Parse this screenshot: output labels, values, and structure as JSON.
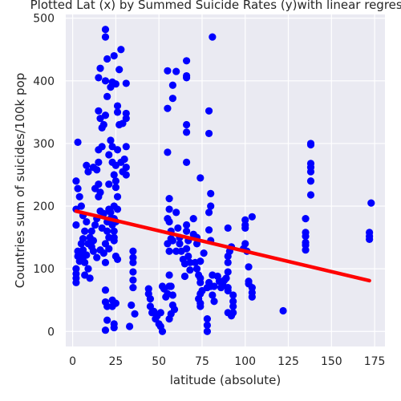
{
  "chart_data": {
    "type": "scatter",
    "title": "Plotted Lat (x) by Summed Suicide Rates (y)with linear regression",
    "xlabel": "latitude (absolute)",
    "ylabel": "Countries sum of suicides/100k pop",
    "xlim": [
      -4,
      181
    ],
    "ylim": [
      -24,
      506
    ],
    "xticks": [
      0,
      25,
      50,
      75,
      100,
      125,
      150,
      175
    ],
    "yticks": [
      0,
      100,
      200,
      300,
      400,
      500
    ],
    "grid": true,
    "marker_color": "#0000ff",
    "line_color": "#ff0000",
    "background": "#eaeaf2",
    "series": [
      {
        "type": "scatter",
        "points": [
          [
            3,
            302
          ],
          [
            2,
            240
          ],
          [
            3,
            228
          ],
          [
            4,
            215
          ],
          [
            2,
            195
          ],
          [
            2,
            170
          ],
          [
            3,
            128
          ],
          [
            3,
            120
          ],
          [
            2,
            100
          ],
          [
            2,
            92
          ],
          [
            2,
            85
          ],
          [
            2,
            78
          ],
          [
            4,
            112
          ],
          [
            5,
            125
          ],
          [
            6,
            118
          ],
          [
            7,
            110
          ],
          [
            8,
            122
          ],
          [
            6,
            130
          ],
          [
            5,
            140
          ],
          [
            6,
            148
          ],
          [
            7,
            160
          ],
          [
            8,
            175
          ],
          [
            6,
            185
          ],
          [
            5,
            200
          ],
          [
            7,
            90
          ],
          [
            9,
            100
          ],
          [
            10,
            85
          ],
          [
            9,
            140
          ],
          [
            10,
            150
          ],
          [
            11,
            135
          ],
          [
            11,
            160
          ],
          [
            12,
            145
          ],
          [
            13,
            170
          ],
          [
            14,
            180
          ],
          [
            12,
            128
          ],
          [
            14,
            118
          ],
          [
            8,
            265
          ],
          [
            9,
            255
          ],
          [
            12,
            262
          ],
          [
            14,
            258
          ],
          [
            15,
            270
          ],
          [
            13,
            228
          ],
          [
            15,
            235
          ],
          [
            15,
            215
          ],
          [
            16,
            222
          ],
          [
            15,
            290
          ],
          [
            17,
            295
          ],
          [
            16,
            340
          ],
          [
            17,
            325
          ],
          [
            18,
            330
          ],
          [
            15,
            352
          ],
          [
            19,
            345
          ],
          [
            15,
            405
          ],
          [
            16,
            420
          ],
          [
            20,
            435
          ],
          [
            19,
            400
          ],
          [
            20,
            375
          ],
          [
            22,
            390
          ],
          [
            19,
            110
          ],
          [
            18,
            125
          ],
          [
            16,
            130
          ],
          [
            19,
            140
          ],
          [
            21,
            150
          ],
          [
            20,
            160
          ],
          [
            17,
            165
          ],
          [
            20,
            175
          ],
          [
            22,
            180
          ],
          [
            18,
            188
          ],
          [
            16,
            192
          ],
          [
            21,
            195
          ],
          [
            23,
            170
          ],
          [
            19,
            66
          ],
          [
            19,
            47
          ],
          [
            20,
            40
          ],
          [
            23,
            40
          ],
          [
            20,
            18
          ],
          [
            19,
            2
          ],
          [
            24,
            12
          ],
          [
            24,
            6
          ],
          [
            23,
            50
          ],
          [
            25,
            45
          ],
          [
            19,
            470
          ],
          [
            19,
            482
          ],
          [
            24,
            440
          ],
          [
            28,
            450
          ],
          [
            27,
            418
          ],
          [
            23,
            398
          ],
          [
            25,
            395
          ],
          [
            31,
            396
          ],
          [
            26,
            360
          ],
          [
            26,
            350
          ],
          [
            31,
            340
          ],
          [
            29,
            332
          ],
          [
            27,
            330
          ],
          [
            31,
            348
          ],
          [
            22,
            305
          ],
          [
            23,
            295
          ],
          [
            26,
            290
          ],
          [
            31,
            295
          ],
          [
            21,
            282
          ],
          [
            23,
            270
          ],
          [
            25,
            265
          ],
          [
            28,
            270
          ],
          [
            30,
            275
          ],
          [
            31,
            262
          ],
          [
            29,
            255
          ],
          [
            24,
            250
          ],
          [
            31,
            250
          ],
          [
            21,
            235
          ],
          [
            25,
            240
          ],
          [
            25,
            230
          ],
          [
            26,
            215
          ],
          [
            24,
            200
          ],
          [
            26,
            195
          ],
          [
            22,
            190
          ],
          [
            24,
            180
          ],
          [
            25,
            175
          ],
          [
            24,
            160
          ],
          [
            24,
            150
          ],
          [
            24,
            145
          ],
          [
            21,
            132
          ],
          [
            25,
            120
          ],
          [
            26,
            115
          ],
          [
            35,
            128
          ],
          [
            35,
            118
          ],
          [
            35,
            110
          ],
          [
            35,
            95
          ],
          [
            35,
            82
          ],
          [
            35,
            70
          ],
          [
            34,
            42
          ],
          [
            36,
            28
          ],
          [
            33,
            8
          ],
          [
            44,
            68
          ],
          [
            44,
            60
          ],
          [
            45,
            52
          ],
          [
            45,
            40
          ],
          [
            46,
            30
          ],
          [
            47,
            32
          ],
          [
            48,
            20
          ],
          [
            49,
            25
          ],
          [
            50,
            12
          ],
          [
            51,
            30
          ],
          [
            51,
            8
          ],
          [
            52,
            0
          ],
          [
            52,
            72
          ],
          [
            53,
            68
          ],
          [
            54,
            55
          ],
          [
            55,
            60
          ],
          [
            56,
            20
          ],
          [
            57,
            28
          ],
          [
            58,
            42
          ],
          [
            59,
            35
          ],
          [
            56,
            72
          ],
          [
            57,
            72
          ],
          [
            58,
            58
          ],
          [
            56,
            90
          ],
          [
            56,
            128
          ],
          [
            55,
            140
          ],
          [
            57,
            148
          ],
          [
            57,
            160
          ],
          [
            58,
            145
          ],
          [
            56,
            175
          ],
          [
            55,
            180
          ],
          [
            56,
            195
          ],
          [
            56,
            212
          ],
          [
            55,
            286
          ],
          [
            55,
            356
          ],
          [
            55,
            416
          ],
          [
            58,
            393
          ],
          [
            58,
            372
          ],
          [
            60,
            415
          ],
          [
            60,
            190
          ],
          [
            61,
            165
          ],
          [
            62,
            150
          ],
          [
            62,
            140
          ],
          [
            63,
            128
          ],
          [
            64,
            115
          ],
          [
            65,
            108
          ],
          [
            66,
            132
          ],
          [
            67,
            145
          ],
          [
            66,
            160
          ],
          [
            66,
            170
          ],
          [
            67,
            120
          ],
          [
            68,
            110
          ],
          [
            68,
            98
          ],
          [
            60,
            128
          ],
          [
            65,
            88
          ],
          [
            66,
            270
          ],
          [
            66,
            318
          ],
          [
            66,
            330
          ],
          [
            66,
            405
          ],
          [
            66,
            408
          ],
          [
            66,
            432
          ],
          [
            70,
            180
          ],
          [
            70,
            155
          ],
          [
            72,
            150
          ],
          [
            72,
            140
          ],
          [
            71,
            110
          ],
          [
            72,
            100
          ],
          [
            73,
            90
          ],
          [
            74,
            85
          ],
          [
            74,
            78
          ],
          [
            75,
            65
          ],
          [
            74,
            60
          ],
          [
            73,
            52
          ],
          [
            74,
            45
          ],
          [
            74,
            40
          ],
          [
            74,
            112
          ],
          [
            74,
            245
          ],
          [
            76,
            125
          ],
          [
            78,
            20
          ],
          [
            78,
            10
          ],
          [
            78,
            0
          ],
          [
            78,
            70
          ],
          [
            79,
            78
          ],
          [
            80,
            72
          ],
          [
            81,
            90
          ],
          [
            81,
            58
          ],
          [
            82,
            48
          ],
          [
            82,
            72
          ],
          [
            79,
            162
          ],
          [
            80,
            145
          ],
          [
            79,
            190
          ],
          [
            80,
            200
          ],
          [
            80,
            220
          ],
          [
            79,
            316
          ],
          [
            79,
            352
          ],
          [
            81,
            470
          ],
          [
            84,
            88
          ],
          [
            85,
            80
          ],
          [
            86,
            70
          ],
          [
            87,
            75
          ],
          [
            88,
            82
          ],
          [
            90,
            70
          ],
          [
            90,
            65
          ],
          [
            89,
            85
          ],
          [
            90,
            95
          ],
          [
            90,
            110
          ],
          [
            90,
            120
          ],
          [
            91,
            128
          ],
          [
            92,
            135
          ],
          [
            90,
            165
          ],
          [
            90,
            30
          ],
          [
            92,
            25
          ],
          [
            93,
            30
          ],
          [
            93,
            40
          ],
          [
            93,
            58
          ],
          [
            93,
            48
          ],
          [
            100,
            178
          ],
          [
            100,
            165
          ],
          [
            100,
            170
          ],
          [
            100,
            140
          ],
          [
            99,
            132
          ],
          [
            101,
            128
          ],
          [
            102,
            103
          ],
          [
            102,
            80
          ],
          [
            102,
            76
          ],
          [
            104,
            183
          ],
          [
            104,
            70
          ],
          [
            104,
            62
          ],
          [
            104,
            55
          ],
          [
            122,
            33
          ],
          [
            135,
            180
          ],
          [
            135,
            158
          ],
          [
            135,
            152
          ],
          [
            135,
            142
          ],
          [
            135,
            138
          ],
          [
            135,
            130
          ],
          [
            138,
            300
          ],
          [
            138,
            298
          ],
          [
            138,
            268
          ],
          [
            138,
            262
          ],
          [
            138,
            255
          ],
          [
            138,
            240
          ],
          [
            138,
            218
          ],
          [
            173,
            205
          ],
          [
            172,
            158
          ],
          [
            172,
            152
          ],
          [
            172,
            147
          ]
        ]
      },
      {
        "type": "line",
        "points": [
          [
            2,
            192
          ],
          [
            172,
            81
          ]
        ]
      }
    ]
  }
}
